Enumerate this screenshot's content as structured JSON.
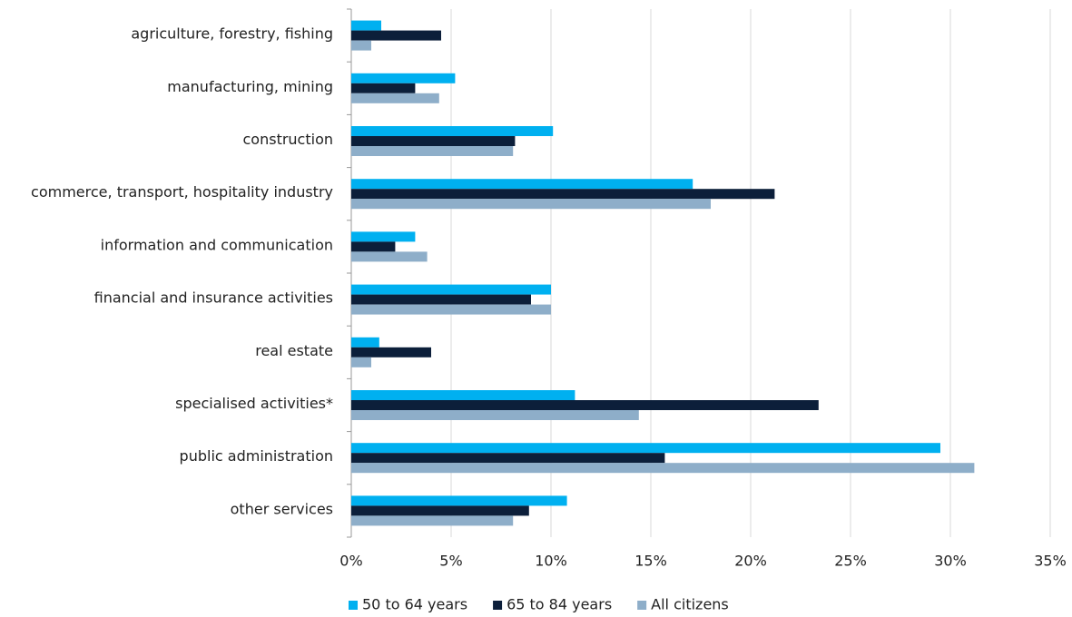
{
  "chart_data": {
    "type": "barh",
    "categories": [
      "agriculture, forestry, fishing",
      "manufacturing, mining",
      "construction",
      "commerce, transport, hospitality industry",
      "information and communication",
      "financial and insurance activities",
      "real estate",
      "specialised activities*",
      "public administration",
      "other services"
    ],
    "series": [
      {
        "name": "50 to 64 years",
        "color": "#00b0f0",
        "values": [
          1.5,
          5.2,
          10.1,
          17.1,
          3.2,
          10.0,
          1.4,
          11.2,
          29.5,
          10.8
        ]
      },
      {
        "name": "65 to 84 years",
        "color": "#0c1f3a",
        "values": [
          4.5,
          3.2,
          8.2,
          21.2,
          2.2,
          9.0,
          4.0,
          23.4,
          15.7,
          8.9
        ]
      },
      {
        "name": "All citizens",
        "color": "#8eaec9",
        "values": [
          1.0,
          4.4,
          8.1,
          18.0,
          3.8,
          10.0,
          1.0,
          14.4,
          31.2,
          8.1
        ]
      }
    ],
    "xlim": [
      0,
      35
    ],
    "xticks": [
      {
        "value": 0,
        "label": "0%"
      },
      {
        "value": 5,
        "label": "5%"
      },
      {
        "value": 10,
        "label": "10%"
      },
      {
        "value": 15,
        "label": "15%"
      },
      {
        "value": 20,
        "label": "20%"
      },
      {
        "value": 25,
        "label": "25%"
      },
      {
        "value": 30,
        "label": "30%"
      },
      {
        "value": 35,
        "label": "35%"
      }
    ],
    "grid": true,
    "legend": "bottom"
  }
}
